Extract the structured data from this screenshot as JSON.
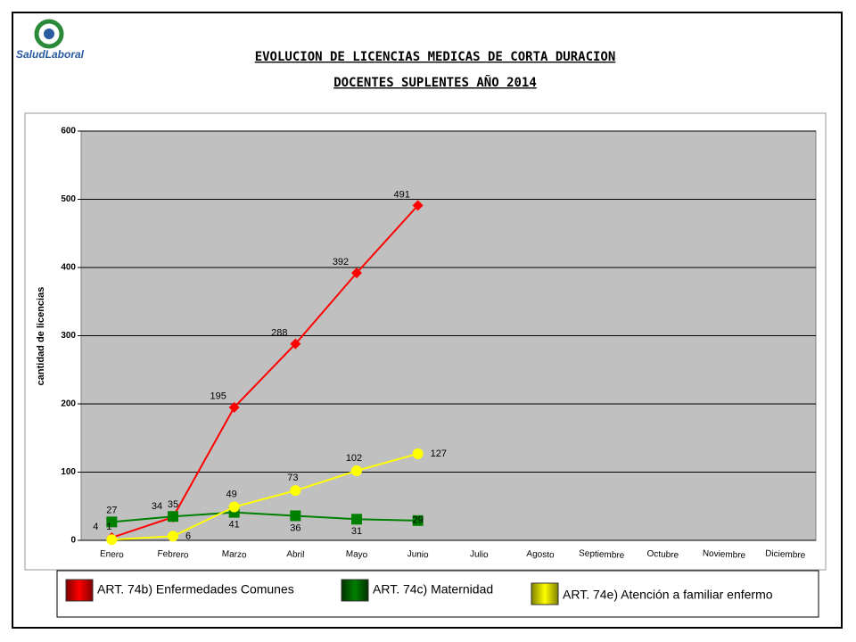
{
  "logo": "SaludLaboral",
  "chart_data": {
    "type": "line",
    "title": "EVOLUCION DE LICENCIAS MEDICAS DE CORTA DURACION",
    "subtitle": "DOCENTES SUPLENTES AÑO 2014",
    "y_label": "cantidad de licencias",
    "categories": [
      "Enero",
      "Febrero",
      "Marzo",
      "Abril",
      "Mayo",
      "Junio",
      "Julio",
      "Agosto",
      "Septiembre",
      "Octubre",
      "Noviembre",
      "Diciembre"
    ],
    "series": [
      {
        "name": "ART. 74b) Enfermedades Comunes",
        "color": "#ff0000",
        "marker": "diamond",
        "values": [
          4,
          34,
          195,
          288,
          392,
          491,
          null,
          null,
          null,
          null,
          null,
          null
        ]
      },
      {
        "name": "ART. 74c) Maternidad",
        "color": "#008000",
        "marker": "square",
        "values": [
          27,
          35,
          41,
          36,
          31,
          29,
          null,
          null,
          null,
          null,
          null,
          null
        ]
      },
      {
        "name": "ART. 74e) Atención a familiar enfermo",
        "color": "#ffff00",
        "marker": "circle",
        "values": [
          1,
          6,
          49,
          73,
          102,
          127,
          null,
          null,
          null,
          null,
          null,
          null
        ]
      }
    ],
    "ylim": [
      0,
      600
    ],
    "yticks": [
      0,
      100,
      200,
      300,
      400,
      500,
      600
    ],
    "grid": true
  }
}
